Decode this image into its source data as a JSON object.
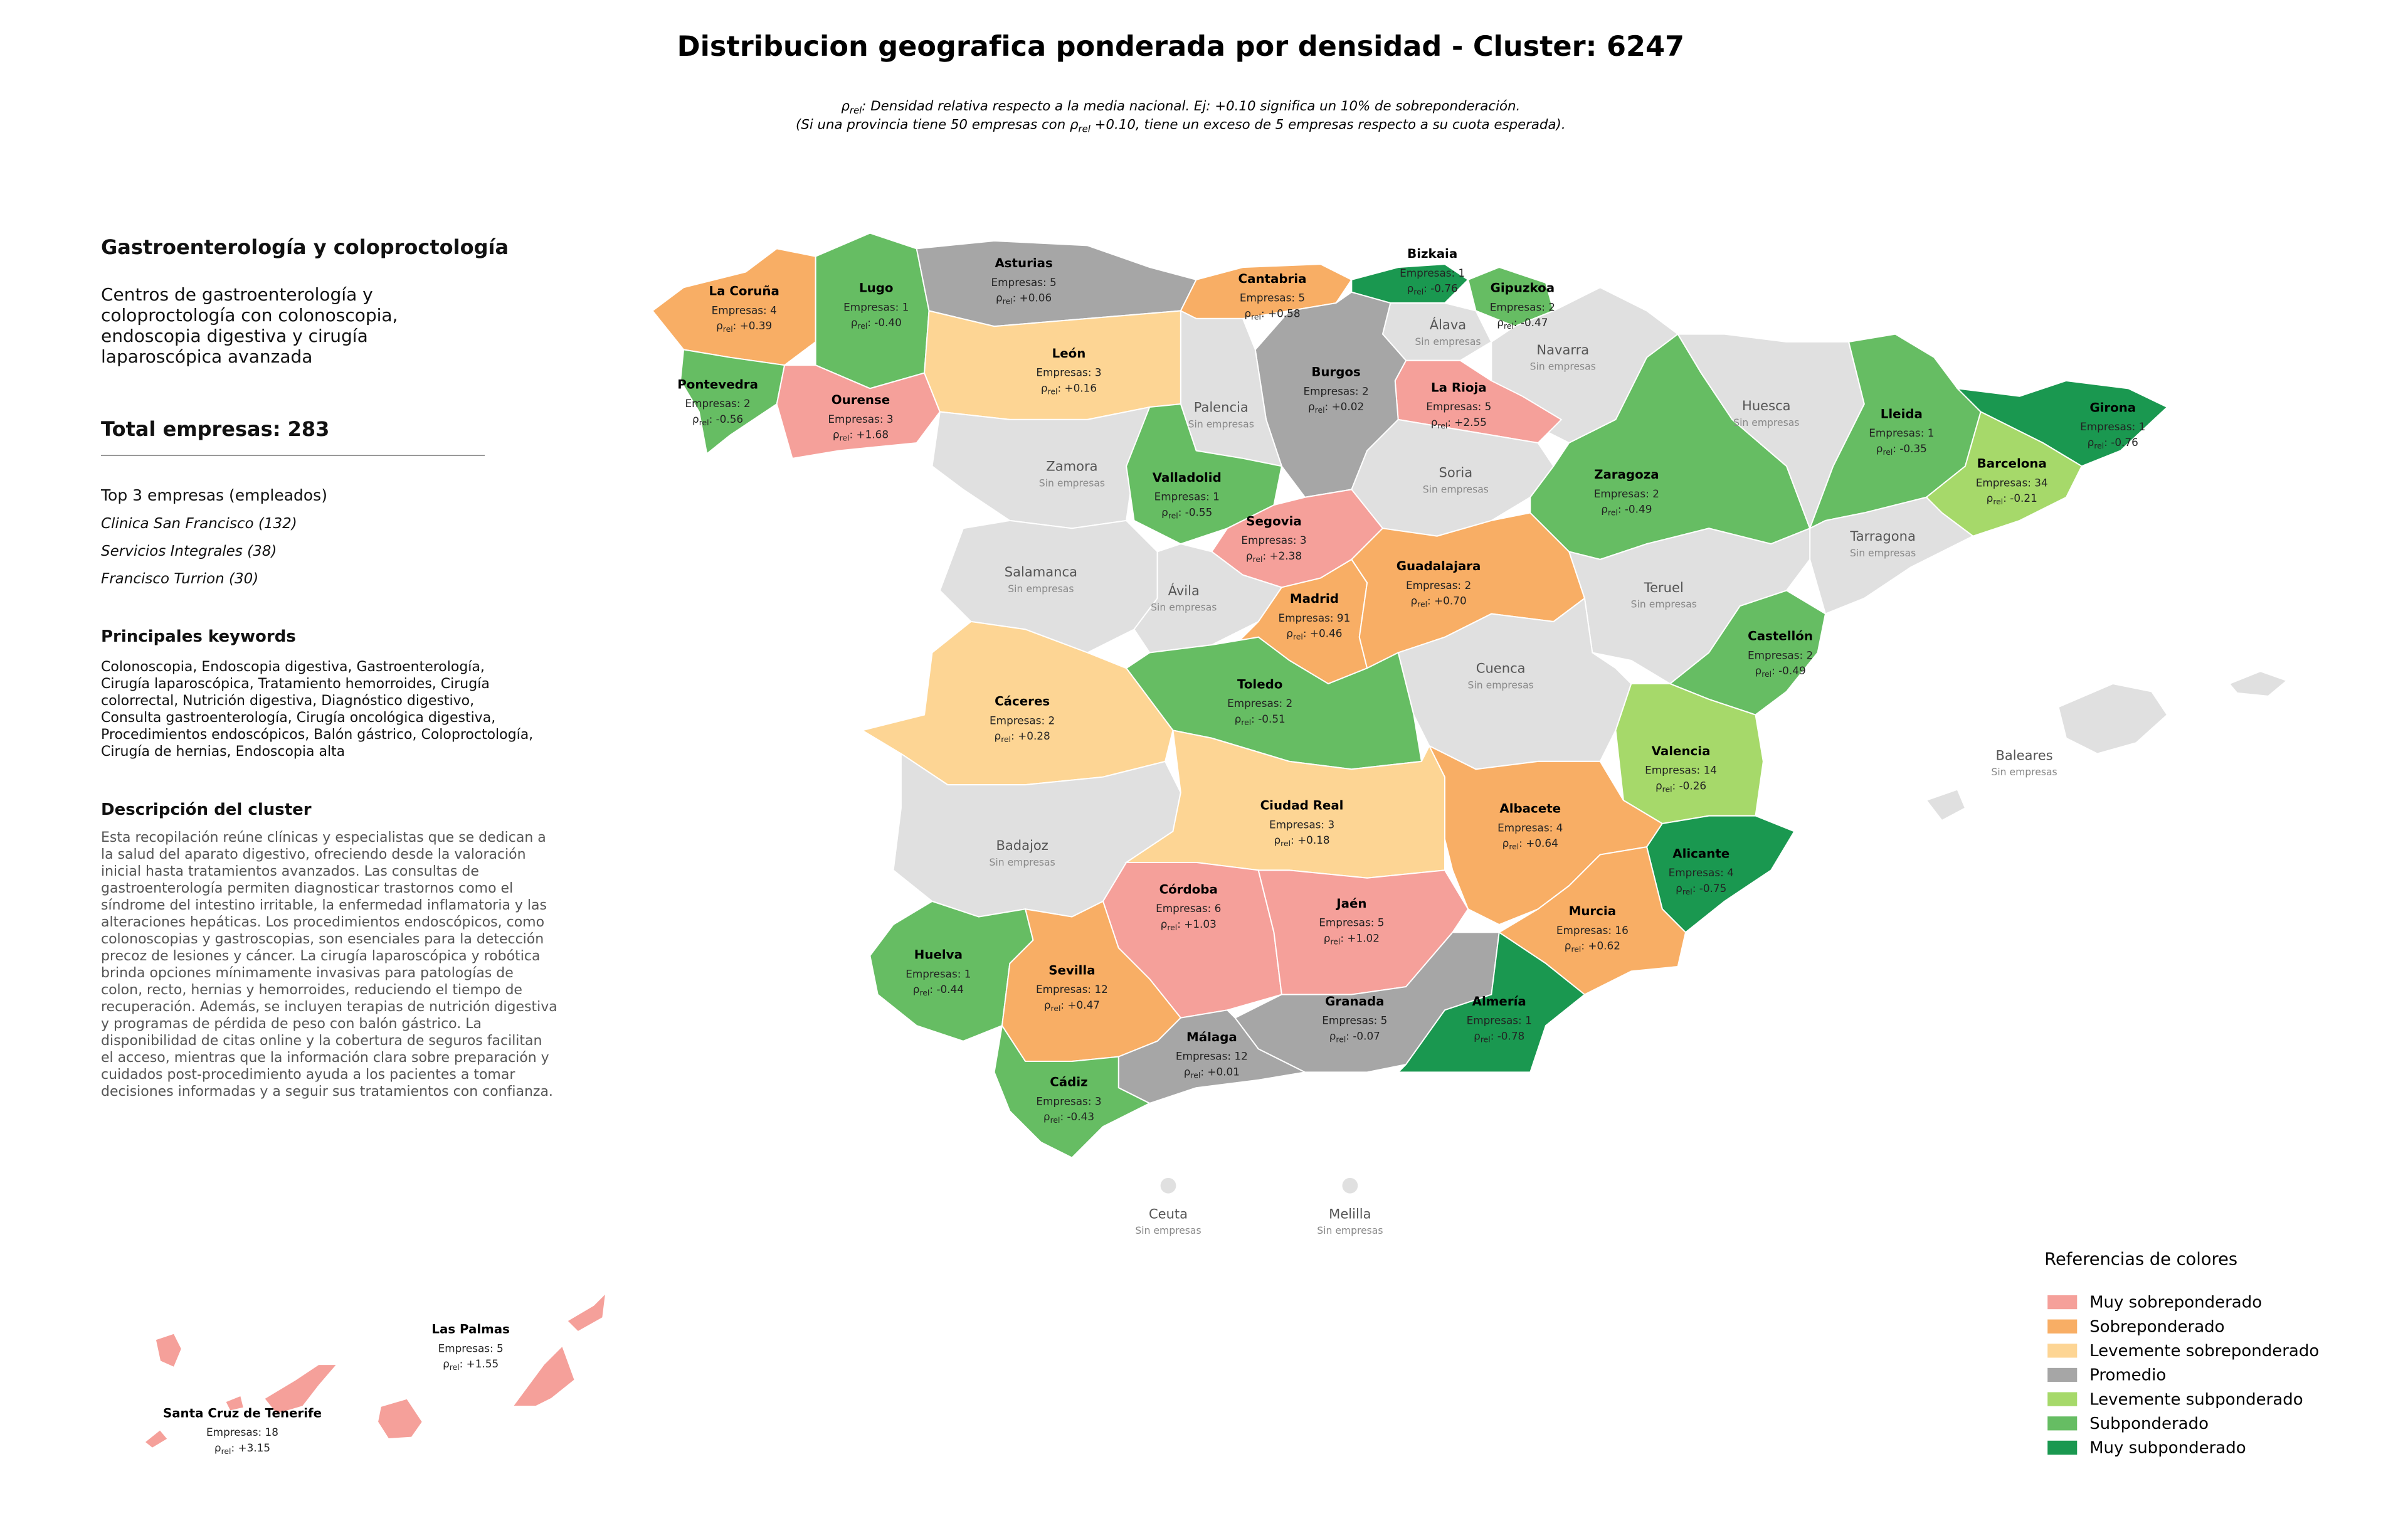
{
  "header": {
    "title": "Distribucion geografica ponderada por densidad - Cluster: 6247",
    "subtitle_line1": {
      "symbol": "ρ",
      "sub": "rel",
      "text": ": Densidad relativa respecto a la media nacional. Ej: +0.10 significa un 10% de sobreponderación."
    },
    "subtitle_line2": {
      "before": "(Si una provincia tiene 50 empresas con ",
      "symbol": "ρ",
      "sub": "rel",
      "after": " +0.10, tiene un exceso de 5 empresas respecto a su cuota esperada)."
    }
  },
  "panel": {
    "sector": "Gastroenterología y coloproctología",
    "sector_description": "Centros de gastroenterología y coloproctología con colonoscopia, endoscopia digestiva y cirugía laparoscópica avanzada",
    "total": "Total empresas: 283",
    "top_heading": "Top 3 empresas (empleados)",
    "top_companies": [
      "Clinica San Francisco (132)",
      "Servicios Integrales (38)",
      "Francisco Turrion (30)"
    ],
    "keywords_heading": "Principales keywords",
    "keywords": "Colonoscopia, Endoscopia digestiva, Gastroenterología, Cirugía laparoscópica, Tratamiento hemorroides, Cirugía colorrectal, Nutrición digestiva, Diagnóstico digestivo, Consulta gastroenterología, Cirugía oncológica digestiva, Procedimientos endoscópicos, Balón gástrico, Coloproctología, Cirugía de hernias, Endoscopia alta",
    "cluster_heading": "Descripción del cluster",
    "cluster_description": "Esta recopilación reúne clínicas y especialistas que se dedican a la salud del aparato digestivo, ofreciendo desde la valoración inicial hasta tratamientos avanzados. Las consultas de gastroenterología permiten diagnosticar trastornos como el síndrome del intestino irritable, la enfermedad inflamatoria y las alteraciones hepáticas. Los procedimientos endoscópicos, como colonoscopias y gastroscopias, son esenciales para la detección precoz de lesiones y cáncer. La cirugía laparoscópica y robótica brinda opciones mínimamente invasivas para patologías de colon, recto, hernias y hemorroides, reduciendo el tiempo de recuperación. Además, se incluyen terapias de nutrición digestiva y programas de pérdida de peso con balón gástrico. La disponibilidad de citas online y la cobertura de seguros facilitan el acceso, mientras que la información clara sobre preparación y cuidados post-procedimiento ayuda a los pacientes a tomar decisiones informadas y a seguir sus tratamientos con confianza."
  },
  "map": {
    "rho_symbol": "ρ",
    "rho_sub": "rel",
    "rho_sep": ": ",
    "provinces": [
      {
        "name": "La Coruña",
        "companies": "Empresas: 4",
        "rho": "+0.39",
        "color": "#f8ae65"
      },
      {
        "name": "Lugo",
        "companies": "Empresas: 1",
        "rho": "-0.40",
        "color": "#66bd63"
      },
      {
        "name": "Pontevedra",
        "companies": "Empresas: 2",
        "rho": "-0.56",
        "color": "#66bd63"
      },
      {
        "name": "Ourense",
        "companies": "Empresas: 3",
        "rho": "+1.68",
        "color": "#f5a09a"
      },
      {
        "name": "Asturias",
        "companies": "Empresas: 5",
        "rho": "+0.06",
        "color": "#a6a6a6"
      },
      {
        "name": "Cantabria",
        "companies": "Empresas: 5",
        "rho": "+0.58",
        "color": "#f8ae65"
      },
      {
        "name": "Bizkaia",
        "companies": "Empresas: 1",
        "rho": "-0.76",
        "color": "#1a9850"
      },
      {
        "name": "Gipuzkoa",
        "companies": "Empresas: 2",
        "rho": "-0.47",
        "color": "#66bd63"
      },
      {
        "name": "Álava",
        "status": "Sin empresas",
        "color": "#e0e0e0"
      },
      {
        "name": "Navarra",
        "status": "Sin empresas",
        "color": "#e0e0e0"
      },
      {
        "name": "La Rioja",
        "companies": "Empresas: 5",
        "rho": "+2.55",
        "color": "#f5a09a"
      },
      {
        "name": "Burgos",
        "companies": "Empresas: 2",
        "rho": "+0.02",
        "color": "#a6a6a6"
      },
      {
        "name": "Palencia",
        "status": "Sin empresas",
        "color": "#e0e0e0"
      },
      {
        "name": "León",
        "companies": "Empresas: 3",
        "rho": "+0.16",
        "color": "#fdd594"
      },
      {
        "name": "Zamora",
        "status": "Sin empresas",
        "color": "#e0e0e0"
      },
      {
        "name": "Valladolid",
        "companies": "Empresas: 1",
        "rho": "-0.55",
        "color": "#66bd63"
      },
      {
        "name": "Soria",
        "status": "Sin empresas",
        "color": "#e0e0e0"
      },
      {
        "name": "Segovia",
        "companies": "Empresas: 3",
        "rho": "+2.38",
        "color": "#f5a09a"
      },
      {
        "name": "Salamanca",
        "status": "Sin empresas",
        "color": "#e0e0e0"
      },
      {
        "name": "Ávila",
        "status": "Sin empresas",
        "color": "#e0e0e0"
      },
      {
        "name": "Madrid",
        "companies": "Empresas: 91",
        "rho": "+0.46",
        "color": "#f8ae65"
      },
      {
        "name": "Guadalajara",
        "companies": "Empresas: 2",
        "rho": "+0.70",
        "color": "#f8ae65"
      },
      {
        "name": "Zaragoza",
        "companies": "Empresas: 2",
        "rho": "-0.49",
        "color": "#66bd63"
      },
      {
        "name": "Huesca",
        "status": "Sin empresas",
        "color": "#e0e0e0"
      },
      {
        "name": "Lleida",
        "companies": "Empresas: 1",
        "rho": "-0.35",
        "color": "#66bd63"
      },
      {
        "name": "Girona",
        "companies": "Empresas: 1",
        "rho": "-0.76",
        "color": "#1a9850"
      },
      {
        "name": "Barcelona",
        "companies": "Empresas: 34",
        "rho": "-0.21",
        "color": "#a6d96a"
      },
      {
        "name": "Tarragona",
        "status": "Sin empresas",
        "color": "#e0e0e0"
      },
      {
        "name": "Teruel",
        "status": "Sin empresas",
        "color": "#e0e0e0"
      },
      {
        "name": "Castellón",
        "companies": "Empresas: 2",
        "rho": "-0.49",
        "color": "#66bd63"
      },
      {
        "name": "Cuenca",
        "status": "Sin empresas",
        "color": "#e0e0e0"
      },
      {
        "name": "Valencia",
        "companies": "Empresas: 14",
        "rho": "-0.26",
        "color": "#a6d96a"
      },
      {
        "name": "Toledo",
        "companies": "Empresas: 2",
        "rho": "-0.51",
        "color": "#66bd63"
      },
      {
        "name": "Cáceres",
        "companies": "Empresas: 2",
        "rho": "+0.28",
        "color": "#fdd594"
      },
      {
        "name": "Badajoz",
        "status": "Sin empresas",
        "color": "#e0e0e0"
      },
      {
        "name": "Ciudad Real",
        "companies": "Empresas: 3",
        "rho": "+0.18",
        "color": "#fdd594"
      },
      {
        "name": "Albacete",
        "companies": "Empresas: 4",
        "rho": "+0.64",
        "color": "#f8ae65"
      },
      {
        "name": "Alicante",
        "companies": "Empresas: 4",
        "rho": "-0.75",
        "color": "#1a9850"
      },
      {
        "name": "Murcia",
        "companies": "Empresas: 16",
        "rho": "+0.62",
        "color": "#f8ae65"
      },
      {
        "name": "Córdoba",
        "companies": "Empresas: 6",
        "rho": "+1.03",
        "color": "#f5a09a"
      },
      {
        "name": "Jaén",
        "companies": "Empresas: 5",
        "rho": "+1.02",
        "color": "#f5a09a"
      },
      {
        "name": "Huelva",
        "companies": "Empresas: 1",
        "rho": "-0.44",
        "color": "#66bd63"
      },
      {
        "name": "Sevilla",
        "companies": "Empresas: 12",
        "rho": "+0.47",
        "color": "#f8ae65"
      },
      {
        "name": "Granada",
        "companies": "Empresas: 5",
        "rho": "-0.07",
        "color": "#a6a6a6"
      },
      {
        "name": "Almería",
        "companies": "Empresas: 1",
        "rho": "-0.78",
        "color": "#1a9850"
      },
      {
        "name": "Málaga",
        "companies": "Empresas: 12",
        "rho": "+0.01",
        "color": "#a6a6a6"
      },
      {
        "name": "Cádiz",
        "companies": "Empresas: 3",
        "rho": "-0.43",
        "color": "#66bd63"
      },
      {
        "name": "Baleares",
        "status": "Sin empresas",
        "color": "#e0e0e0"
      },
      {
        "name": "Ceuta",
        "status": "Sin empresas",
        "color": "#e0e0e0"
      },
      {
        "name": "Melilla",
        "status": "Sin empresas",
        "color": "#e0e0e0"
      },
      {
        "name": "Las Palmas",
        "companies": "Empresas: 5",
        "rho": "+1.55",
        "color": "#f5a09a"
      },
      {
        "name": "Santa Cruz de Tenerife",
        "companies": "Empresas: 18",
        "rho": "+3.15",
        "color": "#f5a09a"
      }
    ]
  },
  "legend": {
    "title": "Referencias de colores",
    "items": [
      {
        "label": "Muy sobreponderado",
        "color": "#f5a09a"
      },
      {
        "label": "Sobreponderado",
        "color": "#f8ae65"
      },
      {
        "label": "Levemente sobreponderado",
        "color": "#fdd594"
      },
      {
        "label": "Promedio",
        "color": "#a6a6a6"
      },
      {
        "label": "Levemente subponderado",
        "color": "#a6d96a"
      },
      {
        "label": "Subponderado",
        "color": "#66bd63"
      },
      {
        "label": "Muy subponderado",
        "color": "#1a9850"
      }
    ]
  }
}
